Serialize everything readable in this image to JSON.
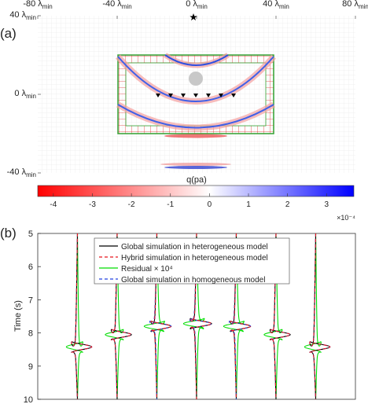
{
  "chart_data": [
    {
      "type": "image",
      "panel_label": "(a)",
      "xlim": [
        -80,
        80
      ],
      "xticks": [
        {
          "value": -80,
          "label": "-80 λ",
          "label_sub": "min"
        },
        {
          "value": -40,
          "label": "-40 λ",
          "label_sub": "min"
        },
        {
          "value": 0,
          "label": "0 λ",
          "label_sub": "min"
        },
        {
          "value": 40,
          "label": "40 λ",
          "label_sub": "min"
        },
        {
          "value": 80,
          "label": "80 λ",
          "label_sub": "min"
        }
      ],
      "ylim": [
        -40,
        40
      ],
      "yticks": [
        {
          "value": 40,
          "label": "40 λ",
          "label_sub": "min"
        },
        {
          "value": 0,
          "label": "0 λ",
          "label_sub": "min"
        },
        {
          "value": -40,
          "label": "-40 λ",
          "label_sub": "min"
        }
      ],
      "colorbar": {
        "label": "q(pa)",
        "clim": [
          -4.4,
          3.7
        ],
        "ticks": [
          -4,
          -3,
          -2,
          -1,
          0,
          1,
          2,
          3
        ],
        "exponent": "×10⁻⁴",
        "colormap": [
          "#ff0000",
          "#ffffff",
          "#0000ff"
        ]
      }
    },
    {
      "type": "wiggle",
      "panel_label": "(b)",
      "ylabel": "Time (s)",
      "ylim": [
        5,
        10
      ],
      "yticks": [
        5,
        6,
        7,
        8,
        9,
        10
      ],
      "xlim": [
        0,
        8
      ],
      "categories": [
        null,
        null,
        null,
        null,
        null,
        null,
        null
      ],
      "time": [
        [
          5,
          8.12,
          8.27,
          8.42,
          8.57,
          8.72,
          10
        ],
        [
          5,
          7.75,
          7.9,
          8.05,
          8.2,
          8.35,
          10
        ],
        [
          5,
          7.5,
          7.65,
          7.8,
          7.95,
          8.1,
          10
        ],
        [
          5,
          7.42,
          7.57,
          7.72,
          7.87,
          8.02,
          10
        ],
        [
          5,
          7.5,
          7.65,
          7.8,
          7.95,
          8.1,
          10
        ],
        [
          5,
          7.75,
          7.9,
          8.05,
          8.2,
          8.35,
          10
        ],
        [
          5,
          8.12,
          8.27,
          8.42,
          8.57,
          8.72,
          10
        ]
      ],
      "legend": "top",
      "series": [
        {
          "name": "Global simulation in heterogeneous model",
          "color": "#000000",
          "dash": false,
          "values": [
            [
              0,
              -0.05,
              -0.13,
              0.36,
              -0.13,
              -0.05,
              0
            ],
            [
              0,
              -0.05,
              -0.13,
              0.36,
              -0.13,
              -0.05,
              0
            ],
            [
              0,
              -0.05,
              -0.13,
              0.36,
              -0.13,
              -0.05,
              0
            ],
            [
              0,
              -0.05,
              -0.14,
              0.38,
              -0.14,
              -0.05,
              0
            ],
            [
              0,
              -0.05,
              -0.13,
              0.36,
              -0.13,
              -0.05,
              0
            ],
            [
              0,
              -0.05,
              -0.13,
              0.36,
              -0.13,
              -0.05,
              0
            ],
            [
              0,
              -0.05,
              -0.13,
              0.36,
              -0.13,
              -0.05,
              0
            ]
          ]
        },
        {
          "name": "Hybrid simulation in heterogeneous model",
          "color": "#e8141c",
          "dash": true,
          "values": [
            [
              0,
              -0.05,
              -0.13,
              0.36,
              -0.13,
              -0.05,
              0
            ],
            [
              0,
              -0.05,
              -0.13,
              0.36,
              -0.13,
              -0.05,
              0
            ],
            [
              0,
              -0.05,
              -0.13,
              0.36,
              -0.13,
              -0.05,
              0
            ],
            [
              0,
              -0.05,
              -0.14,
              0.38,
              -0.14,
              -0.05,
              0
            ],
            [
              0,
              -0.05,
              -0.13,
              0.36,
              -0.13,
              -0.05,
              0
            ],
            [
              0,
              -0.05,
              -0.13,
              0.36,
              -0.13,
              -0.05,
              0
            ],
            [
              0,
              -0.05,
              -0.13,
              0.36,
              -0.13,
              -0.05,
              0
            ]
          ]
        },
        {
          "name": "Residual × 10⁴",
          "color": "#00dd00",
          "dash": false,
          "values": [
            [
              0,
              0.04,
              0.12,
              -0.28,
              0.12,
              0.04,
              0
            ],
            [
              0,
              0.05,
              0.14,
              -0.3,
              0.14,
              0.05,
              0
            ],
            [
              0,
              0.06,
              0.18,
              -0.32,
              0.16,
              0.05,
              0
            ],
            [
              0,
              0.06,
              0.18,
              -0.33,
              0.16,
              0.05,
              0
            ],
            [
              0,
              0.06,
              0.18,
              -0.32,
              0.16,
              0.05,
              0
            ],
            [
              0,
              0.05,
              0.14,
              -0.3,
              0.14,
              0.05,
              0
            ],
            [
              0,
              0.04,
              0.12,
              -0.28,
              0.12,
              0.04,
              0
            ]
          ]
        },
        {
          "name": "Global simulation in homogeneous model",
          "color": "#2040e0",
          "dash": true,
          "values": [
            [
              0,
              -0.05,
              -0.13,
              0.36,
              -0.13,
              -0.05,
              0
            ],
            [
              0,
              -0.05,
              -0.13,
              0.36,
              -0.13,
              -0.05,
              0
            ],
            [
              0,
              -0.06,
              -0.16,
              0.36,
              -0.12,
              -0.04,
              0
            ],
            [
              0,
              -0.06,
              -0.17,
              0.37,
              -0.12,
              -0.04,
              0
            ],
            [
              0,
              -0.06,
              -0.16,
              0.36,
              -0.12,
              -0.04,
              0
            ],
            [
              0,
              -0.05,
              -0.13,
              0.36,
              -0.13,
              -0.05,
              0
            ],
            [
              0,
              -0.05,
              -0.13,
              0.36,
              -0.13,
              -0.05,
              0
            ]
          ]
        }
      ]
    }
  ]
}
